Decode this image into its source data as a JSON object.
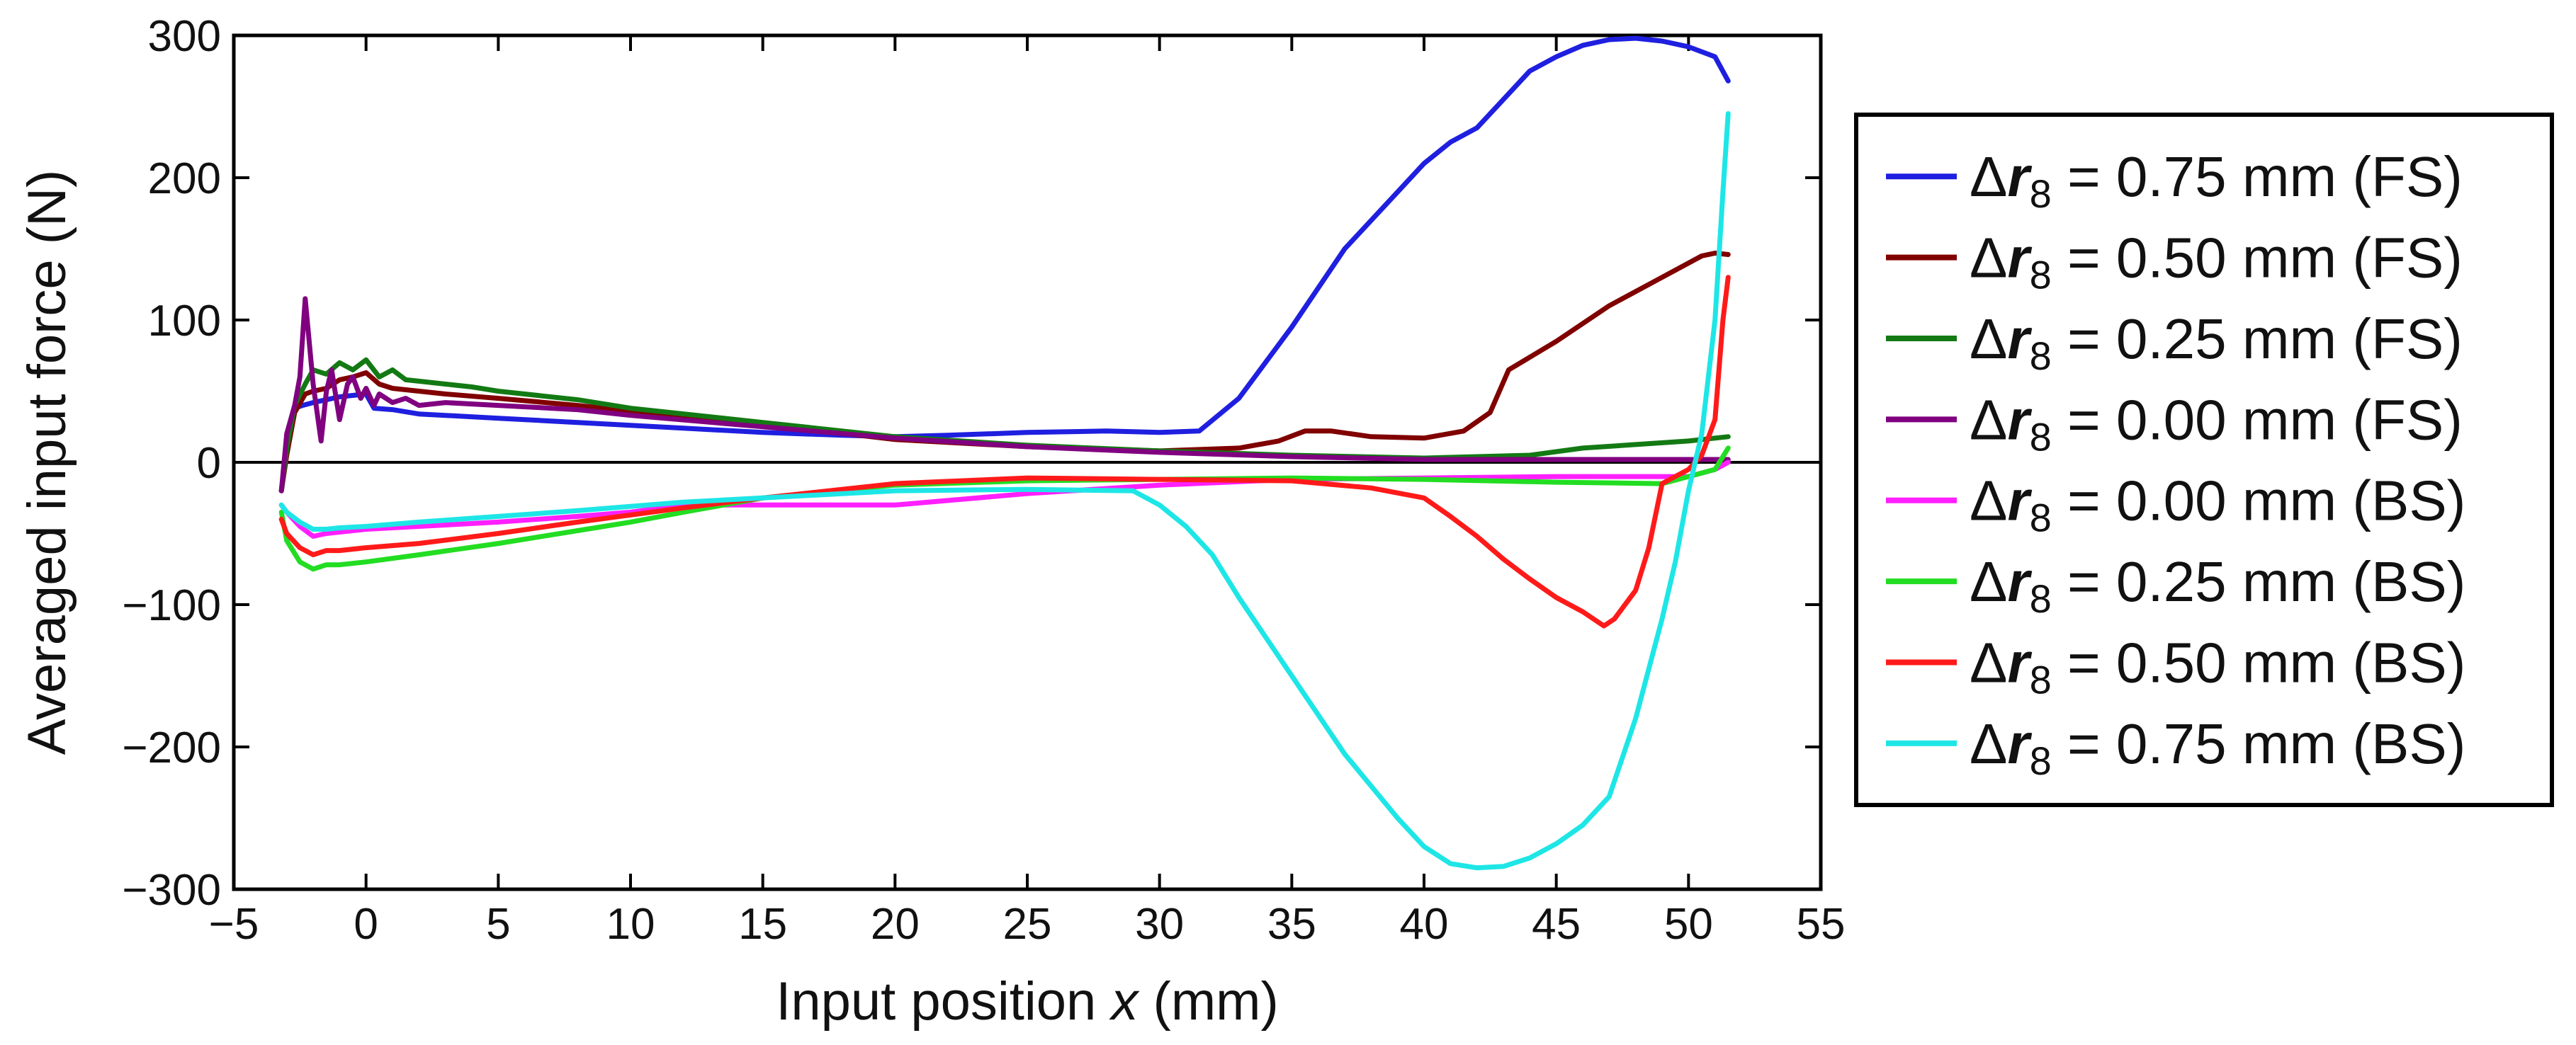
{
  "chart_data": {
    "type": "line",
    "title": "",
    "xlabel": "Input position x (mm)",
    "xlabel_parts": {
      "prefix": "Input position ",
      "var": "x",
      "suffix": " (mm)"
    },
    "ylabel": "Averaged input force (N)",
    "xlim": [
      -5,
      55
    ],
    "ylim": [
      -300,
      300
    ],
    "xticks": [
      "−5",
      "0",
      "5",
      "10",
      "15",
      "20",
      "25",
      "30",
      "35",
      "40",
      "45",
      "50",
      "55"
    ],
    "yticks": [
      "300",
      "200",
      "100",
      "0",
      "−100",
      "−200",
      "−300"
    ],
    "xtick_values": [
      -5,
      0,
      5,
      10,
      15,
      20,
      25,
      30,
      35,
      40,
      45,
      50,
      55
    ],
    "ytick_values": [
      300,
      200,
      100,
      0,
      -100,
      -200,
      -300
    ],
    "zero_line": true,
    "grid": false,
    "legend_position": "right-outside",
    "series": [
      {
        "name": "Δr8 = 0.75 mm (FS)",
        "label_parts": {
          "delta": "Δ",
          "var": "r",
          "sub": "8",
          "rest": " = 0.75 mm (FS)"
        },
        "color": "#1f1fe0",
        "x": [
          -3.2,
          -3.0,
          -2.7,
          -2.4,
          -2.0,
          -1.5,
          -1.0,
          -0.5,
          0.0,
          0.3,
          1.0,
          2.0,
          3.0,
          5.0,
          7.0,
          10.0,
          12.0,
          15.0,
          18.0,
          20.0,
          22.0,
          25.0,
          28.0,
          30.0,
          31.5,
          33.0,
          35.0,
          37.0,
          39.0,
          40.0,
          41.0,
          42.0,
          43.0,
          44.0,
          45.0,
          46.0,
          47.0,
          48.0,
          49.0,
          50.0,
          51.0,
          51.5
        ],
        "y": [
          -20,
          10,
          38,
          40,
          42,
          44,
          46,
          47,
          48,
          38,
          37,
          34,
          33,
          31,
          29,
          26,
          24,
          21,
          19,
          18,
          19,
          21,
          22,
          21,
          22,
          45,
          95,
          150,
          190,
          210,
          225,
          235,
          255,
          275,
          285,
          293,
          297,
          298,
          296,
          292,
          285,
          268
        ]
      },
      {
        "name": "Δr8 = 0.50 mm (FS)",
        "label_parts": {
          "delta": "Δ",
          "var": "r",
          "sub": "8",
          "rest": " = 0.50 mm (FS)"
        },
        "color": "#800000",
        "x": [
          -3.2,
          -3.0,
          -2.7,
          -2.3,
          -2.0,
          -1.5,
          -1.0,
          -0.5,
          0.0,
          0.5,
          1.0,
          2.0,
          3.0,
          5.0,
          8.0,
          10.0,
          15.0,
          20.0,
          25.0,
          30.0,
          33.0,
          34.5,
          35.5,
          36.5,
          38.0,
          40.0,
          41.5,
          42.5,
          43.2,
          45.0,
          47.0,
          49.0,
          50.5,
          51.0,
          51.5
        ],
        "y": [
          -20,
          5,
          35,
          48,
          50,
          52,
          58,
          60,
          63,
          55,
          52,
          50,
          48,
          45,
          40,
          36,
          27,
          16,
          11,
          8,
          10,
          15,
          22,
          22,
          18,
          17,
          22,
          35,
          65,
          85,
          110,
          130,
          145,
          147,
          146
        ]
      },
      {
        "name": "Δr8 = 0.25 mm (FS)",
        "label_parts": {
          "delta": "Δ",
          "var": "r",
          "sub": "8",
          "rest": " = 0.25 mm (FS)"
        },
        "color": "#137a13",
        "x": [
          -3.2,
          -3.0,
          -2.7,
          -2.3,
          -2.0,
          -1.5,
          -1.0,
          -0.5,
          0.0,
          0.5,
          1.0,
          1.5,
          2.0,
          3.0,
          4.0,
          5.0,
          8.0,
          10.0,
          15.0,
          20.0,
          25.0,
          30.0,
          35.0,
          40.0,
          44.0,
          46.0,
          50.0,
          51.5
        ],
        "y": [
          -20,
          10,
          40,
          55,
          65,
          62,
          70,
          65,
          72,
          60,
          65,
          58,
          57,
          55,
          53,
          50,
          44,
          38,
          28,
          18,
          12,
          8,
          5,
          3,
          5,
          10,
          15,
          18
        ]
      },
      {
        "name": "Δr8 = 0.00 mm (FS)",
        "label_parts": {
          "delta": "Δ",
          "var": "r",
          "sub": "8",
          "rest": " = 0.00 mm (FS)"
        },
        "color": "#800080",
        "x": [
          -3.2,
          -3.0,
          -2.7,
          -2.5,
          -2.3,
          -2.0,
          -1.7,
          -1.5,
          -1.3,
          -1.0,
          -0.7,
          -0.5,
          -0.2,
          0.0,
          0.3,
          0.5,
          1.0,
          1.5,
          2.0,
          3.0,
          5.0,
          8.0,
          10.0,
          15.0,
          20.0,
          25.0,
          30.0,
          35.0,
          40.0,
          45.0,
          50.0,
          51.5
        ],
        "y": [
          -20,
          20,
          40,
          60,
          115,
          55,
          15,
          50,
          65,
          30,
          55,
          60,
          45,
          52,
          40,
          48,
          42,
          45,
          40,
          42,
          40,
          37,
          33,
          25,
          17,
          11,
          7,
          4,
          2,
          2,
          2,
          2
        ]
      },
      {
        "name": "Δr8 = 0.00 mm (BS)",
        "label_parts": {
          "delta": "Δ",
          "var": "r",
          "sub": "8",
          "rest": " = 0.00 mm (BS)"
        },
        "color": "#ff1fff",
        "x": [
          -3.2,
          -3.0,
          -2.5,
          -2.0,
          -1.5,
          -1.0,
          0.0,
          2.0,
          5.0,
          8.0,
          10.0,
          12.0,
          15.0,
          20.0,
          25.0,
          30.0,
          35.0,
          40.0,
          45.0,
          50.0,
          51.0,
          51.5
        ],
        "y": [
          -30,
          -35,
          -45,
          -52,
          -50,
          -49,
          -47,
          -45,
          -42,
          -38,
          -35,
          -30,
          -30,
          -30,
          -22,
          -16,
          -12,
          -11,
          -10,
          -10,
          -5,
          0
        ]
      },
      {
        "name": "Δr8 = 0.25 mm (BS)",
        "label_parts": {
          "delta": "Δ",
          "var": "r",
          "sub": "8",
          "rest": " = 0.25 mm (BS)"
        },
        "color": "#22dd22",
        "x": [
          -3.2,
          -3.0,
          -2.5,
          -2.0,
          -1.5,
          -1.0,
          0.0,
          2.0,
          5.0,
          8.0,
          10.0,
          12.0,
          15.0,
          20.0,
          25.0,
          30.0,
          35.0,
          40.0,
          45.0,
          49.0,
          50.0,
          51.0,
          51.5
        ],
        "y": [
          -35,
          -55,
          -70,
          -75,
          -72,
          -72,
          -70,
          -65,
          -57,
          -48,
          -42,
          -35,
          -25,
          -16,
          -13,
          -12,
          -11,
          -12,
          -14,
          -15,
          -10,
          -5,
          10
        ]
      },
      {
        "name": "Δr8 = 0.50 mm (BS)",
        "label_parts": {
          "delta": "Δ",
          "var": "r",
          "sub": "8",
          "rest": " = 0.50 mm (BS)"
        },
        "color": "#ff1a1a",
        "x": [
          -3.2,
          -3.0,
          -2.5,
          -2.0,
          -1.5,
          -1.0,
          0.0,
          2.0,
          5.0,
          8.0,
          10.0,
          12.0,
          15.0,
          20.0,
          25.0,
          30.0,
          35.0,
          38.0,
          40.0,
          41.0,
          42.0,
          43.0,
          44.0,
          45.0,
          46.0,
          46.8,
          47.2,
          48.0,
          48.5,
          49.0,
          50.0,
          50.5,
          51.0,
          51.3,
          51.5
        ],
        "y": [
          -40,
          -50,
          -60,
          -65,
          -62,
          -62,
          -60,
          -57,
          -50,
          -42,
          -37,
          -32,
          -25,
          -15,
          -11,
          -12,
          -13,
          -18,
          -25,
          -38,
          -52,
          -68,
          -82,
          -95,
          -105,
          -115,
          -110,
          -90,
          -60,
          -15,
          -5,
          5,
          30,
          100,
          130
        ]
      },
      {
        "name": "Δr8 = 0.75 mm (BS)",
        "label_parts": {
          "delta": "Δ",
          "var": "r",
          "sub": "8",
          "rest": " = 0.75 mm (BS)"
        },
        "color": "#1ee6e6",
        "x": [
          -3.2,
          -3.0,
          -2.5,
          -2.0,
          -1.5,
          -1.0,
          0.0,
          2.0,
          5.0,
          8.0,
          10.0,
          12.0,
          15.0,
          20.0,
          25.0,
          29.0,
          30.0,
          31.0,
          32.0,
          33.0,
          35.0,
          37.0,
          39.0,
          40.0,
          41.0,
          42.0,
          43.0,
          44.0,
          45.0,
          46.0,
          47.0,
          48.0,
          49.0,
          49.5,
          50.0,
          50.5,
          51.0,
          51.3,
          51.5
        ],
        "y": [
          -30,
          -35,
          -42,
          -47,
          -47,
          -46,
          -45,
          -42,
          -38,
          -34,
          -31,
          -28,
          -25,
          -20,
          -19,
          -20,
          -30,
          -45,
          -65,
          -95,
          -150,
          -205,
          -250,
          -270,
          -282,
          -285,
          -284,
          -278,
          -268,
          -255,
          -235,
          -180,
          -110,
          -70,
          -20,
          20,
          100,
          190,
          245
        ]
      }
    ]
  }
}
